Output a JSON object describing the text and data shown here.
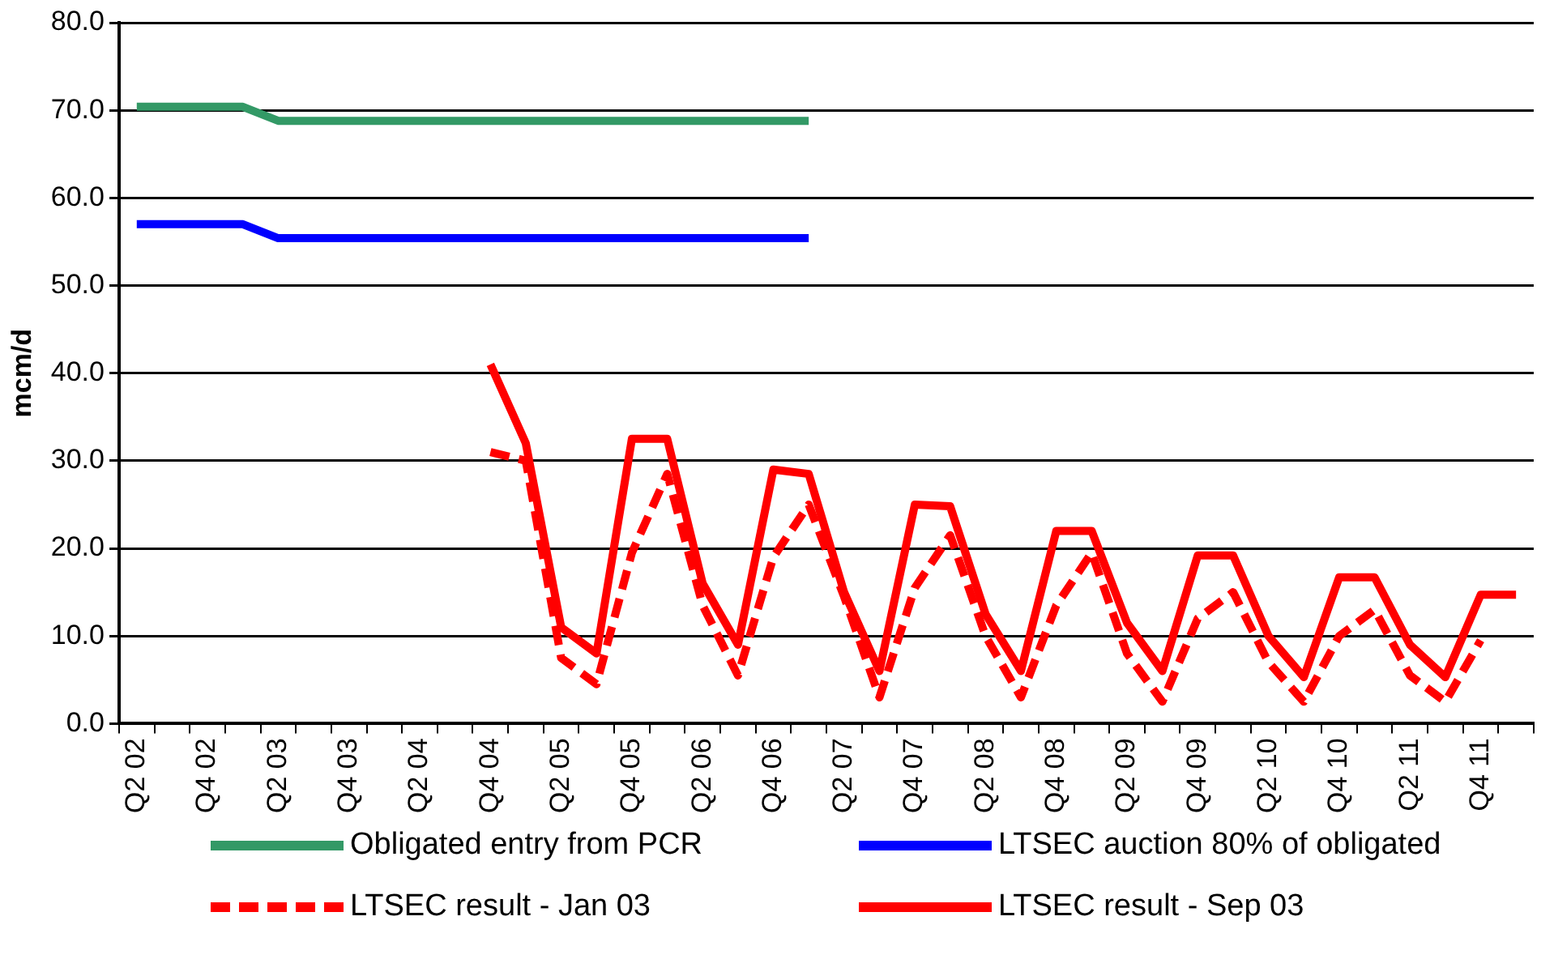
{
  "chart_data": {
    "type": "line",
    "ylabel": "mcm/d",
    "categories": [
      "Q2 02",
      null,
      "Q4 02",
      null,
      "Q2 03",
      null,
      "Q4 03",
      null,
      "Q2 04",
      null,
      "Q4 04",
      null,
      "Q2 05",
      null,
      "Q4 05",
      null,
      "Q2 06",
      null,
      "Q4 06",
      null,
      "Q2 07",
      null,
      "Q4 07",
      null,
      "Q2 08",
      null,
      "Q4 08",
      null,
      "Q2 09",
      null,
      "Q4 09",
      null,
      "Q2 10",
      null,
      "Q4 10",
      null,
      "Q2 11",
      null,
      "Q4 11",
      null
    ],
    "series": [
      {
        "name": "Obligated entry from PCR",
        "color": "#339966",
        "line_style": "solid",
        "values": [
          70.4,
          70.4,
          70.4,
          70.4,
          68.8,
          68.8,
          68.8,
          68.8,
          68.8,
          68.8,
          68.8,
          68.8,
          68.8,
          68.8,
          68.8,
          68.8,
          68.8,
          68.8,
          68.8,
          68.8,
          null,
          null,
          null,
          null,
          null,
          null,
          null,
          null,
          null,
          null,
          null,
          null,
          null,
          null,
          null,
          null,
          null,
          null,
          null,
          null
        ]
      },
      {
        "name": "LTSEC auction 80% of obligated",
        "color": "#0000ff",
        "line_style": "solid",
        "values": [
          57.0,
          57.0,
          57.0,
          57.0,
          55.4,
          55.4,
          55.4,
          55.4,
          55.4,
          55.4,
          55.4,
          55.4,
          55.4,
          55.4,
          55.4,
          55.4,
          55.4,
          55.4,
          55.4,
          55.4,
          null,
          null,
          null,
          null,
          null,
          null,
          null,
          null,
          null,
          null,
          null,
          null,
          null,
          null,
          null,
          null,
          null,
          null,
          null,
          null
        ]
      },
      {
        "name": "LTSEC result - Jan 03",
        "color": "#ff0000",
        "line_style": "dashed",
        "values": [
          null,
          null,
          null,
          null,
          null,
          null,
          null,
          null,
          null,
          null,
          31.0,
          30.0,
          7.5,
          4.5,
          19.5,
          28.5,
          13.5,
          5.5,
          19.0,
          25.0,
          14.5,
          3.0,
          15.5,
          21.5,
          10.0,
          3.0,
          13.5,
          19.5,
          8.0,
          2.5,
          12.0,
          15.0,
          7.0,
          2.5,
          10.0,
          13.0,
          5.5,
          2.5,
          9.5,
          null
        ]
      },
      {
        "name": "LTSEC result - Sep 03",
        "color": "#ff0000",
        "line_style": "solid",
        "values": [
          null,
          null,
          null,
          null,
          null,
          null,
          null,
          null,
          null,
          null,
          41.0,
          32.0,
          11.0,
          8.0,
          32.5,
          32.5,
          16.0,
          9.0,
          29.0,
          28.5,
          15.0,
          6.0,
          25.0,
          24.8,
          12.5,
          6.0,
          22.0,
          22.0,
          11.5,
          6.0,
          19.2,
          19.2,
          10.0,
          5.3,
          16.7,
          16.7,
          9.0,
          5.3,
          14.7,
          14.7
        ]
      }
    ],
    "ylim": [
      0,
      80
    ],
    "yticks": [
      {
        "value": 0,
        "label": "0.0"
      },
      {
        "value": 10,
        "label": "10.0"
      },
      {
        "value": 20,
        "label": "20.0"
      },
      {
        "value": 30,
        "label": "30.0"
      },
      {
        "value": 40,
        "label": "40.0"
      },
      {
        "value": 50,
        "label": "50.0"
      },
      {
        "value": 60,
        "label": "60.0"
      },
      {
        "value": 70,
        "label": "70.0"
      },
      {
        "value": 80,
        "label": "80.0"
      }
    ],
    "grid": "y",
    "legend": "bottom",
    "marker": "none"
  }
}
